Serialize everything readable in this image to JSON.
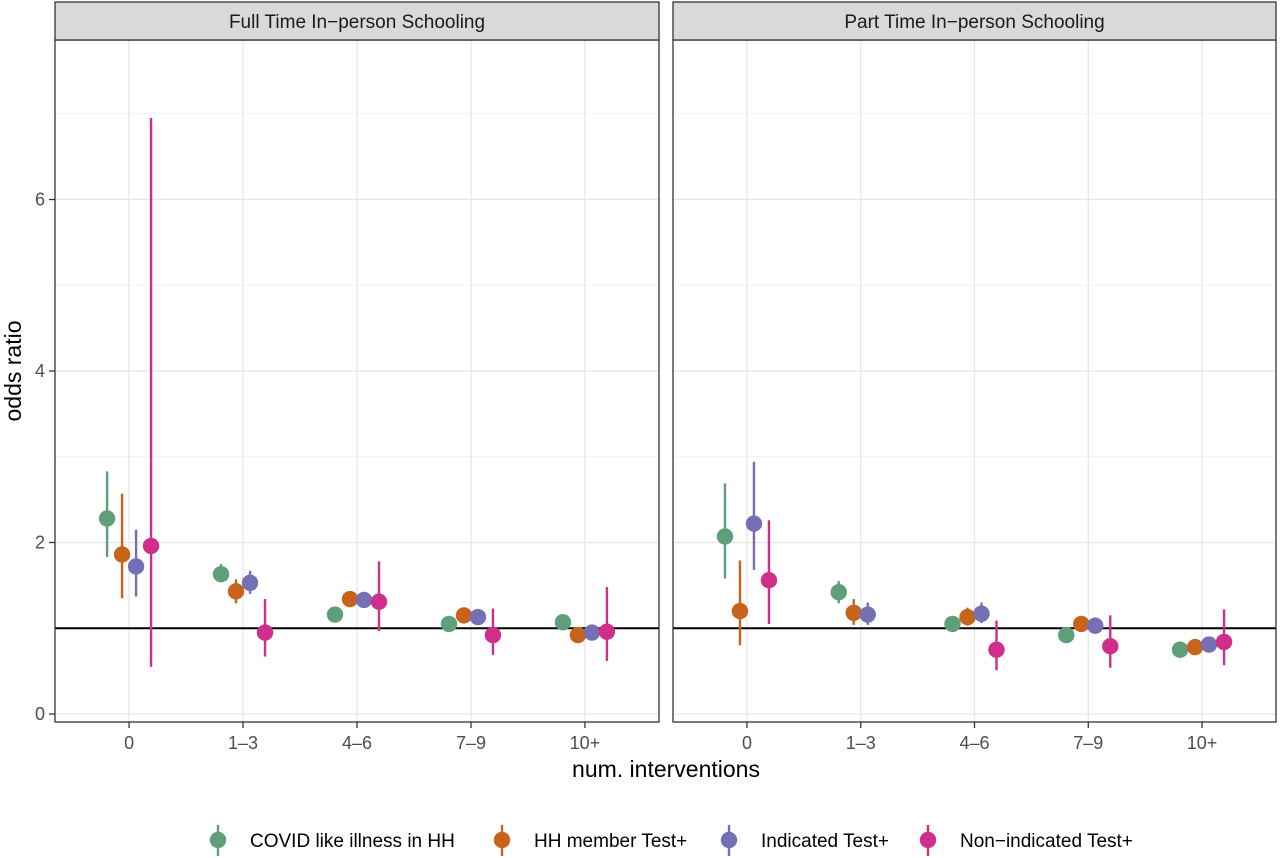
{
  "chart_data": {
    "type": "scatter",
    "subtype": "point-range, faceted",
    "xlabel": "num. interventions",
    "ylabel": "odds ratio",
    "categories": [
      "0",
      "1–3",
      "4–6",
      "7–9",
      "10+"
    ],
    "ylim": [
      0,
      7.8
    ],
    "yticks": [
      0,
      2,
      4,
      6
    ],
    "yticklabels": [
      "0",
      "2",
      "4",
      "6"
    ],
    "reference_line": 1,
    "grid": true,
    "legend_position": "bottom",
    "series_order": [
      "COVID like illness in HH",
      "HH member Test+",
      "Indicated Test+",
      "Non−indicated Test+"
    ],
    "colors": {
      "COVID like illness in HH": "#5e9e78",
      "HH member Test+": "#c8631c",
      "Indicated Test+": "#7570b3",
      "Non−indicated Test+": "#cf2f8a"
    },
    "panels": [
      {
        "title": "Full Time In−person Schooling",
        "series": [
          {
            "name": "COVID like illness in HH",
            "values": [
              2.28,
              1.63,
              1.16,
              1.05,
              1.07
            ],
            "lower": [
              1.83,
              1.55,
              1.12,
              1.01,
              1.01
            ],
            "upper": [
              2.83,
              1.75,
              1.21,
              1.09,
              1.13
            ]
          },
          {
            "name": "HH member Test+",
            "values": [
              1.86,
              1.43,
              1.34,
              1.15,
              0.92
            ],
            "lower": [
              1.35,
              1.29,
              1.25,
              1.08,
              0.84
            ],
            "upper": [
              2.57,
              1.57,
              1.43,
              1.21,
              1.01
            ]
          },
          {
            "name": "Indicated Test+",
            "values": [
              1.72,
              1.53,
              1.33,
              1.13,
              0.95
            ],
            "lower": [
              1.37,
              1.4,
              1.24,
              1.06,
              0.88
            ],
            "upper": [
              2.15,
              1.67,
              1.42,
              1.2,
              1.03
            ]
          },
          {
            "name": "Non−indicated Test+",
            "values": [
              1.96,
              0.95,
              1.31,
              0.92,
              0.96
            ],
            "lower": [
              0.55,
              0.67,
              0.97,
              0.69,
              0.62
            ],
            "upper": [
              6.95,
              1.34,
              1.78,
              1.23,
              1.48
            ]
          }
        ]
      },
      {
        "title": "Part Time In−person Schooling",
        "series": [
          {
            "name": "COVID like illness in HH",
            "values": [
              2.07,
              1.42,
              1.05,
              0.92,
              0.75
            ],
            "lower": [
              1.58,
              1.29,
              0.98,
              0.86,
              0.7
            ],
            "upper": [
              2.69,
              1.55,
              1.12,
              0.98,
              0.81
            ]
          },
          {
            "name": "HH member Test+",
            "values": [
              1.2,
              1.18,
              1.13,
              1.05,
              0.78
            ],
            "lower": [
              0.8,
              1.04,
              1.03,
              0.98,
              0.72
            ],
            "upper": [
              1.79,
              1.34,
              1.24,
              1.13,
              0.84
            ]
          },
          {
            "name": "Indicated Test+",
            "values": [
              2.22,
              1.16,
              1.17,
              1.03,
              0.81
            ],
            "lower": [
              1.68,
              1.04,
              1.06,
              0.97,
              0.75
            ],
            "upper": [
              2.94,
              1.3,
              1.3,
              1.1,
              0.88
            ]
          },
          {
            "name": "Non−indicated Test+",
            "values": [
              1.56,
              0.75,
              0.79,
              0.84
            ],
            "lower": [
              1.05,
              0.51,
              0.54,
              0.57
            ],
            "upper": [
              2.26,
              1.09,
              1.15,
              1.22
            ],
            "categories_present": [
              0,
              2,
              3,
              4
            ]
          }
        ]
      }
    ]
  }
}
